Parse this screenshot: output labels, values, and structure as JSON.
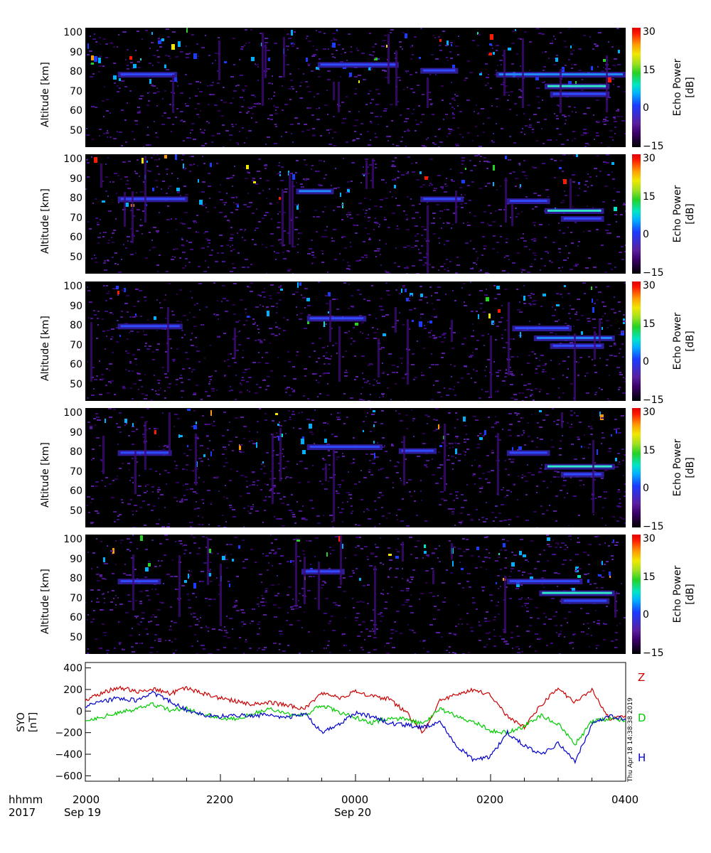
{
  "chart_data": {
    "type": "heatmap",
    "panels": [
      {
        "ylabel": "Altitude [km]",
        "yticks": [
          "100",
          "90",
          "80",
          "70",
          "60",
          "50"
        ],
        "ylim": [
          42,
          103
        ],
        "colorbar": {
          "label_line1": "Echo Power",
          "label_line2": "[dB]",
          "ticks": [
            "30",
            "15",
            "0",
            "−15"
          ],
          "range": [
            -15,
            32
          ]
        },
        "layers": [
          [
            0.06,
            0.17,
            79,
            0.4
          ],
          [
            0.76,
            1.0,
            79,
            0.55
          ],
          [
            0.85,
            0.97,
            73,
            0.85
          ],
          [
            0.86,
            0.97,
            69,
            0.4
          ],
          [
            0.43,
            0.58,
            84,
            0.3
          ],
          [
            0.62,
            0.69,
            81,
            0.25
          ]
        ]
      },
      {
        "ylabel": "Altitude [km]",
        "yticks": [
          "100",
          "90",
          "80",
          "70",
          "60",
          "50"
        ],
        "ylim": [
          42,
          103
        ],
        "colorbar": {
          "label_line1": "Echo Power",
          "label_line2": "[dB]",
          "ticks": [
            "30",
            "15",
            "0",
            "−15"
          ],
          "range": [
            -15,
            32
          ]
        },
        "layers": [
          [
            0.06,
            0.19,
            80,
            0.45
          ],
          [
            0.39,
            0.46,
            84,
            0.5
          ],
          [
            0.62,
            0.7,
            80,
            0.25
          ],
          [
            0.78,
            0.86,
            79,
            0.35
          ],
          [
            0.85,
            0.96,
            74,
            0.85
          ],
          [
            0.88,
            0.96,
            70,
            0.45
          ]
        ]
      },
      {
        "ylabel": "Altitude [km]",
        "yticks": [
          "100",
          "90",
          "80",
          "70",
          "60",
          "50"
        ],
        "ylim": [
          42,
          103
        ],
        "colorbar": {
          "label_line1": "Echo Power",
          "label_line2": "[dB]",
          "ticks": [
            "30",
            "15",
            "0",
            "−15"
          ],
          "range": [
            -15,
            32
          ]
        },
        "layers": [
          [
            0.06,
            0.18,
            80,
            0.35
          ],
          [
            0.79,
            0.9,
            79,
            0.35
          ],
          [
            0.83,
            0.98,
            74,
            0.6
          ],
          [
            0.86,
            0.96,
            70,
            0.35
          ],
          [
            0.41,
            0.52,
            84,
            0.25
          ]
        ]
      },
      {
        "ylabel": "Altitude [km]",
        "yticks": [
          "100",
          "90",
          "80",
          "70",
          "60",
          "50"
        ],
        "ylim": [
          42,
          103
        ],
        "colorbar": {
          "label_line1": "Echo Power",
          "label_line2": "[dB]",
          "ticks": [
            "30",
            "15",
            "0",
            "−15"
          ],
          "range": [
            -15,
            32
          ]
        },
        "layers": [
          [
            0.06,
            0.16,
            80,
            0.35
          ],
          [
            0.41,
            0.55,
            83,
            0.45
          ],
          [
            0.58,
            0.65,
            81,
            0.45
          ],
          [
            0.78,
            0.86,
            80,
            0.35
          ],
          [
            0.85,
            0.98,
            73,
            0.75
          ],
          [
            0.88,
            0.96,
            69,
            0.4
          ]
        ]
      },
      {
        "ylabel": "Altitude [km]",
        "yticks": [
          "100",
          "90",
          "80",
          "70",
          "60",
          "50"
        ],
        "ylim": [
          42,
          103
        ],
        "colorbar": {
          "label_line1": "Echo Power",
          "label_line2": "[dB]",
          "ticks": [
            "30",
            "15",
            "0",
            "−15"
          ],
          "range": [
            -15,
            32
          ]
        },
        "layers": [
          [
            0.06,
            0.14,
            79,
            0.45
          ],
          [
            0.4,
            0.48,
            84,
            0.45
          ],
          [
            0.78,
            0.92,
            79,
            0.35
          ],
          [
            0.84,
            0.98,
            73,
            0.85
          ],
          [
            0.88,
            0.97,
            69,
            0.4
          ]
        ]
      }
    ],
    "magnetometer": {
      "type": "line",
      "ylabel_line1": "SYO",
      "ylabel_line2": "[nT]",
      "yticks": [
        "400",
        "200",
        "0",
        "−200",
        "−400",
        "−600"
      ],
      "ylim": [
        -650,
        450
      ],
      "x_hours": [
        0,
        0.25,
        0.5,
        0.75,
        1,
        1.25,
        1.5,
        1.75,
        2,
        2.25,
        2.5,
        2.75,
        3,
        3.25,
        3.5,
        3.75,
        4,
        4.25,
        4.5,
        4.75,
        5,
        5.25,
        5.5,
        5.75,
        6,
        6.25,
        6.5,
        6.75,
        7,
        7.25,
        7.5,
        7.75,
        8
      ],
      "series": [
        {
          "name": "Z",
          "color": "#cc0000",
          "values": [
            100,
            170,
            220,
            180,
            210,
            160,
            210,
            160,
            120,
            90,
            60,
            80,
            50,
            20,
            170,
            120,
            180,
            140,
            110,
            -10,
            -210,
            100,
            150,
            200,
            150,
            -50,
            -150,
            60,
            210,
            80,
            200,
            -70,
            -40
          ]
        },
        {
          "name": "D",
          "color": "#00cc00",
          "values": [
            -90,
            -50,
            -20,
            20,
            60,
            10,
            20,
            -30,
            -60,
            -80,
            -20,
            20,
            -30,
            -40,
            60,
            -10,
            -60,
            -110,
            -60,
            -80,
            -120,
            20,
            -50,
            -100,
            -180,
            -200,
            -140,
            -40,
            -120,
            -310,
            -100,
            -70,
            -90
          ]
        },
        {
          "name": "H",
          "color": "#0000cc",
          "values": [
            40,
            90,
            120,
            100,
            170,
            90,
            10,
            -40,
            -50,
            -40,
            -40,
            -40,
            -60,
            -20,
            -200,
            -130,
            -20,
            -50,
            -110,
            -130,
            -150,
            -100,
            -320,
            -460,
            -420,
            -200,
            -320,
            -400,
            -300,
            -460,
            -130,
            -40,
            -80
          ]
        }
      ],
      "timestamp": "Thu Apr 18 14:38:38 2019"
    },
    "xaxis": {
      "row1_label": "hhmm",
      "row2_label": "2017",
      "ticks": [
        "2000",
        "2200",
        "0000",
        "0200",
        "0400"
      ],
      "dates": [
        "Sep 19",
        "Sep 20"
      ],
      "range_hours": [
        0,
        8
      ]
    }
  }
}
